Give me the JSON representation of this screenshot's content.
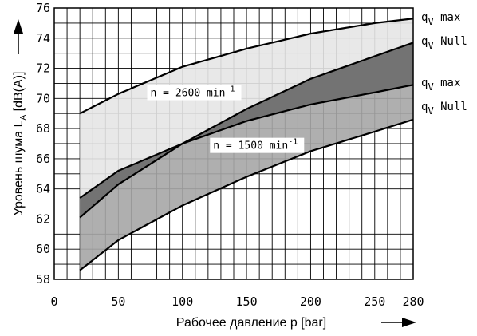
{
  "chart_data": {
    "type": "area",
    "xlabel": "Рабочее давление p [bar]",
    "ylabel_prefix": "Уровень шума L",
    "ylabel_sub": "A",
    "ylabel_suffix": " [dB(A)]",
    "xlim": [
      0,
      280
    ],
    "ylim": [
      58,
      76
    ],
    "x_ticks": [
      "0",
      "50",
      "100",
      "150",
      "200",
      "250",
      "280"
    ],
    "y_ticks": [
      "58",
      "60",
      "62",
      "64",
      "66",
      "68",
      "70",
      "72",
      "74",
      "76"
    ],
    "grid": true,
    "band_colors": {
      "band_2600": "#e6e6e6",
      "band_1500": "#a6a6a6",
      "overlap": "#737373"
    },
    "series": [
      {
        "speed": "n = 2600 min-1",
        "curve": "qV max",
        "x": [
          20,
          50,
          100,
          150,
          200,
          250,
          280
        ],
        "y": [
          69.0,
          70.3,
          72.1,
          73.3,
          74.3,
          75.0,
          75.3
        ]
      },
      {
        "speed": "n = 2600 min-1",
        "curve": "qV Null",
        "x": [
          20,
          50,
          100,
          150,
          200,
          250,
          280
        ],
        "y": [
          62.1,
          64.3,
          67.0,
          69.3,
          71.3,
          72.8,
          73.7
        ]
      },
      {
        "speed": "n = 1500 min-1",
        "curve": "qV max",
        "x": [
          20,
          50,
          100,
          150,
          200,
          250,
          280
        ],
        "y": [
          63.4,
          65.2,
          67.0,
          68.5,
          69.6,
          70.4,
          70.9
        ]
      },
      {
        "speed": "n = 1500 min-1",
        "curve": "qV Null",
        "x": [
          20,
          50,
          100,
          150,
          200,
          250,
          280
        ],
        "y": [
          58.6,
          60.6,
          62.9,
          64.8,
          66.5,
          67.8,
          68.6
        ]
      }
    ],
    "annotations": [
      {
        "text": "n = 2600 min",
        "sup": "-1",
        "x": 75,
        "y": 70.2
      },
      {
        "text": "n = 1500 min",
        "sup": "-1",
        "x": 124,
        "y": 66.7
      }
    ],
    "legend": [
      {
        "q": "q",
        "sub": "V",
        "label": " max"
      },
      {
        "q": "q",
        "sub": "V",
        "label": " Null"
      },
      {
        "q": "q",
        "sub": "V",
        "label": " max"
      },
      {
        "q": "q",
        "sub": "V",
        "label": " Null"
      }
    ]
  }
}
